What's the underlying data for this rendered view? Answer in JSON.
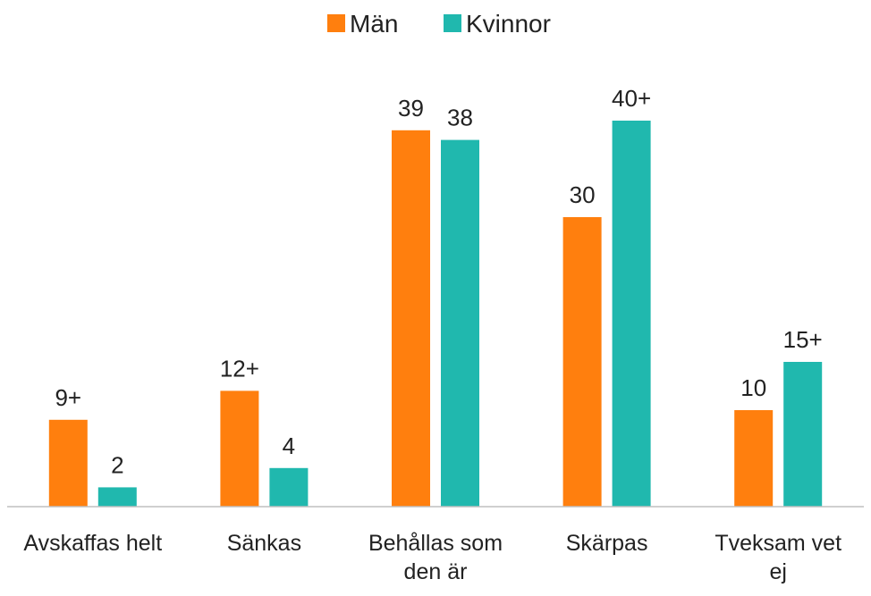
{
  "chart_data": {
    "type": "bar",
    "categories": [
      "Avskaffas helt",
      "Sänkas",
      "Behållas som den är",
      "Skärpas",
      "Tveksam vet ej"
    ],
    "series": [
      {
        "name": "Män",
        "color": "#ff7f0e",
        "values": [
          9,
          12,
          39,
          30,
          10
        ],
        "value_labels": [
          "9+",
          "12+",
          "39",
          "30",
          "10"
        ]
      },
      {
        "name": "Kvinnor",
        "color": "#20b8ae",
        "values": [
          2,
          4,
          38,
          40,
          15
        ],
        "value_labels": [
          "2",
          "4",
          "38",
          "40+",
          "15+"
        ]
      }
    ],
    "legend": "top"
  }
}
